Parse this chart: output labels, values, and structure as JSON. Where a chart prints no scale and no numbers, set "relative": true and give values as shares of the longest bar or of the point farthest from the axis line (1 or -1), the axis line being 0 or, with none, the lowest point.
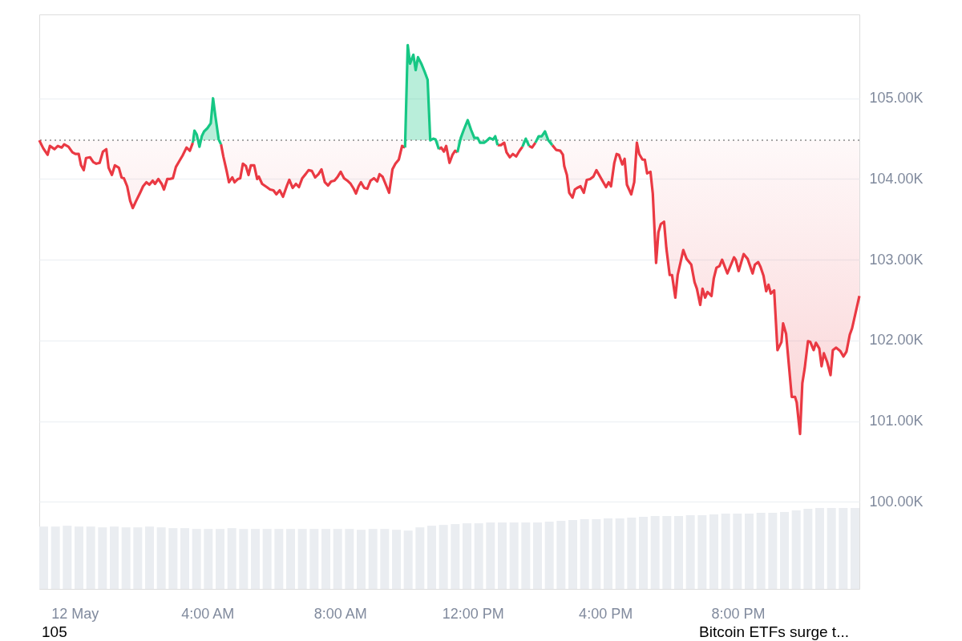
{
  "chart_data": [
    {
      "type": "line",
      "xlim": [
        -1.07,
        23.66
      ],
      "ylim": [
        98.92,
        106.04
      ],
      "grid": "y",
      "marker": "none",
      "line_style": "solid",
      "xticks": [
        {
          "value": 0,
          "label": "12 May"
        },
        {
          "value": 4,
          "label": "4:00 AM"
        },
        {
          "value": 8,
          "label": "8:00 AM"
        },
        {
          "value": 12,
          "label": "12:00 PM"
        },
        {
          "value": 16,
          "label": "4:00 PM"
        },
        {
          "value": 20,
          "label": "8:00 PM"
        }
      ],
      "yticks": [
        {
          "value": 100,
          "label": "100.00K"
        },
        {
          "value": 101,
          "label": "101.00K"
        },
        {
          "value": 102,
          "label": "102.00K"
        },
        {
          "value": 103,
          "label": "103.00K"
        },
        {
          "value": 104,
          "label": "104.00K"
        },
        {
          "value": 105,
          "label": "105.00K"
        }
      ],
      "ref_lines": [
        {
          "axis": "y",
          "value": 104.48,
          "label": null,
          "color": "#8c8c8c",
          "line_style": "dotted"
        }
      ],
      "annotations": [
        "105",
        "Bitcoin ETFs surge t..."
      ],
      "x": [
        -1.07,
        -0.95,
        -0.82,
        -0.75,
        -0.61,
        -0.51,
        -0.39,
        -0.32,
        -0.19,
        -0.07,
        0.02,
        0.12,
        0.19,
        0.27,
        0.34,
        0.46,
        0.56,
        0.65,
        0.75,
        0.85,
        0.95,
        1.02,
        1.12,
        1.21,
        1.33,
        1.41,
        1.48,
        1.58,
        1.67,
        1.75,
        1.84,
        1.96,
        2.06,
        2.16,
        2.25,
        2.35,
        2.42,
        2.52,
        2.62,
        2.69,
        2.79,
        2.86,
        2.96,
        3.05,
        3.15,
        3.25,
        3.37,
        3.47,
        3.56,
        3.61,
        3.68,
        3.76,
        3.83,
        3.9,
        4.0,
        4.1,
        4.17,
        4.24,
        4.34,
        4.41,
        4.48,
        4.58,
        4.65,
        4.75,
        4.82,
        4.92,
        4.99,
        5.07,
        5.16,
        5.24,
        5.31,
        5.41,
        5.5,
        5.55,
        5.65,
        5.79,
        5.89,
        5.99,
        6.08,
        6.18,
        6.28,
        6.4,
        6.47,
        6.57,
        6.67,
        6.76,
        6.86,
        6.96,
        7.05,
        7.15,
        7.25,
        7.35,
        7.44,
        7.54,
        7.64,
        7.73,
        7.83,
        7.93,
        8.02,
        8.12,
        8.22,
        8.32,
        8.41,
        8.48,
        8.56,
        8.63,
        8.73,
        8.82,
        8.92,
        9.02,
        9.12,
        9.19,
        9.28,
        9.41,
        9.48,
        9.58,
        9.67,
        9.77,
        9.87,
        9.96,
        10.04,
        10.11,
        10.21,
        10.28,
        10.35,
        10.45,
        10.55,
        10.64,
        10.72,
        10.81,
        10.88,
        10.98,
        11.05,
        11.13,
        11.2,
        11.3,
        11.39,
        11.47,
        11.54,
        11.64,
        11.73,
        11.85,
        11.95,
        12.05,
        12.15,
        12.22,
        12.34,
        12.41,
        12.51,
        12.61,
        12.68,
        12.75,
        12.85,
        12.95,
        13.02,
        13.12,
        13.21,
        13.31,
        13.41,
        13.5,
        13.6,
        13.7,
        13.79,
        13.89,
        13.99,
        14.08,
        14.18,
        14.28,
        14.4,
        14.52,
        14.64,
        14.72,
        14.76,
        14.84,
        14.91,
        15.01,
        15.08,
        15.15,
        15.25,
        15.35,
        15.44,
        15.54,
        15.64,
        15.73,
        16.02,
        16.1,
        16.17,
        16.27,
        16.34,
        16.41,
        16.51,
        16.58,
        16.65,
        16.78,
        16.87,
        16.95,
        17.02,
        17.12,
        17.19,
        17.26,
        17.36,
        17.43,
        17.53,
        17.6,
        17.67,
        17.77,
        17.84,
        17.94,
        18.01,
        18.11,
        18.18,
        18.35,
        18.45,
        18.59,
        18.69,
        18.76,
        18.86,
        18.93,
        19.01,
        19.08,
        19.2,
        19.27,
        19.35,
        19.44,
        19.52,
        19.68,
        19.88,
        19.93,
        20.02,
        20.17,
        20.29,
        20.44,
        20.51,
        20.61,
        20.68,
        20.77,
        20.85,
        20.92,
        20.99,
        21.09,
        21.19,
        21.31,
        21.36,
        21.45,
        21.62,
        21.72,
        21.77,
        21.87,
        21.94,
        22.01,
        22.11,
        22.18,
        22.28,
        22.35,
        22.45,
        22.52,
        22.59,
        22.69,
        22.79,
        22.86,
        22.96,
        23.08,
        23.18,
        23.27,
        23.37,
        23.44,
        23.66
      ],
      "series": [
        {
          "color": "#ea3943",
          "values": [
            104.48,
            104.38,
            104.3,
            104.41,
            104.37,
            104.41,
            104.39,
            104.43,
            104.4,
            104.33,
            104.31,
            104.31,
            104.17,
            104.11,
            104.26,
            104.27,
            104.21,
            104.19,
            104.2,
            104.34,
            104.37,
            104.14,
            104.05,
            104.17,
            104.14,
            104.02,
            104.01,
            103.91,
            103.73,
            103.64,
            103.72,
            103.82,
            103.91,
            103.96,
            103.93,
            103.98,
            103.94,
            104.0,
            103.94,
            103.87,
            104.0,
            104.0,
            104.01,
            104.15,
            104.22,
            104.29,
            104.39,
            104.35,
            104.45,
            null,
            null,
            null,
            null,
            null,
            null,
            null,
            null,
            null,
            null,
            104.43,
            104.28,
            104.1,
            103.96,
            104.02,
            103.96,
            104.0,
            104.01,
            104.19,
            104.16,
            104.05,
            104.17,
            104.17,
            104.0,
            104.03,
            103.94,
            103.9,
            103.87,
            103.86,
            103.81,
            103.86,
            103.78,
            103.92,
            103.99,
            103.89,
            103.94,
            103.9,
            104.01,
            104.06,
            104.11,
            104.1,
            104.02,
            104.06,
            104.12,
            103.96,
            103.92,
            103.97,
            103.98,
            104.03,
            104.09,
            104.01,
            103.98,
            103.94,
            103.88,
            103.82,
            103.91,
            103.96,
            103.89,
            103.88,
            103.98,
            104.01,
            103.97,
            104.06,
            104.03,
            103.9,
            103.83,
            104.12,
            104.19,
            104.24,
            104.41,
            104.39,
            null,
            null,
            null,
            null,
            null,
            null,
            null,
            null,
            null,
            null,
            null,
            104.37,
            104.39,
            104.34,
            104.41,
            104.2,
            104.3,
            104.35,
            104.33,
            null,
            null,
            null,
            null,
            null,
            null,
            null,
            null,
            null,
            null,
            null,
            null,
            104.42,
            104.42,
            104.45,
            104.33,
            104.27,
            104.31,
            104.28,
            104.35,
            104.4,
            null,
            104.41,
            104.39,
            104.45,
            null,
            null,
            null,
            null,
            104.42,
            104.36,
            104.35,
            104.3,
            104.16,
            104.05,
            103.83,
            103.77,
            103.87,
            103.89,
            103.91,
            103.83,
            103.99,
            104.0,
            104.03,
            104.11,
            103.9,
            103.96,
            103.91,
            104.2,
            104.31,
            104.3,
            104.18,
            104.25,
            103.93,
            103.81,
            103.96,
            104.45,
            104.31,
            104.24,
            104.24,
            104.07,
            104.09,
            103.82,
            102.96,
            103.34,
            103.44,
            103.47,
            103.14,
            102.81,
            102.81,
            102.53,
            102.81,
            103.12,
            103.01,
            102.94,
            102.72,
            102.64,
            102.44,
            102.64,
            102.53,
            102.6,
            102.55,
            102.77,
            102.9,
            102.92,
            103.0,
            102.83,
            103.03,
            103.0,
            102.86,
            103.07,
            103.01,
            102.83,
            102.94,
            102.97,
            102.91,
            102.8,
            102.61,
            102.69,
            102.58,
            102.62,
            101.88,
            101.98,
            102.21,
            102.08,
            101.3,
            101.3,
            101.23,
            100.84,
            101.47,
            101.65,
            101.99,
            101.98,
            101.88,
            101.97,
            101.9,
            101.68,
            101.84,
            101.73,
            101.57,
            101.88,
            101.91,
            101.87,
            101.8,
            101.86,
            102.07,
            102.15,
            102.55
          ]
        },
        {
          "color": "#16c784",
          "x": [
            3.56,
            3.61,
            3.68,
            3.76,
            3.83,
            3.9,
            4.0,
            4.1,
            4.17,
            4.24,
            4.34,
            4.41,
            4.48,
            9.96,
            10.04,
            10.11,
            10.21,
            10.28,
            10.35,
            10.45,
            10.55,
            10.64,
            10.72,
            10.81,
            10.88,
            10.98,
            11.05,
            11.54,
            11.64,
            11.73,
            11.85,
            11.95,
            12.05,
            12.15,
            12.22,
            12.34,
            12.41,
            12.51,
            12.61,
            12.68,
            12.75,
            12.85,
            13.5,
            13.6,
            13.7,
            13.79,
            13.89,
            13.99,
            14.08,
            14.18,
            14.28,
            14.4
          ],
          "values": [
            104.45,
            104.6,
            104.55,
            104.4,
            104.53,
            104.59,
            104.63,
            104.69,
            105.0,
            104.78,
            104.49,
            104.43,
            null,
            104.39,
            105.66,
            105.43,
            105.54,
            105.35,
            105.51,
            105.43,
            105.33,
            105.23,
            104.48,
            104.5,
            104.49,
            104.37,
            null,
            104.33,
            104.51,
            104.61,
            104.73,
            104.61,
            104.51,
            104.51,
            104.45,
            104.45,
            104.47,
            104.51,
            104.49,
            104.53,
            104.42,
            null,
            104.4,
            104.5,
            104.41,
            null,
            104.45,
            104.53,
            104.53,
            104.59,
            104.48,
            104.42
          ]
        }
      ]
    },
    {
      "type": "bar",
      "relative": true,
      "color": "#eaedf1",
      "categories": [
        null,
        null,
        null,
        null,
        null,
        null,
        null,
        null,
        null,
        null,
        null,
        null,
        null,
        null,
        null,
        null,
        null,
        null,
        null,
        null,
        null,
        null,
        null,
        null,
        null,
        null,
        null,
        null,
        null,
        null,
        null,
        null,
        null,
        null,
        null,
        null,
        null,
        null,
        null,
        null,
        null,
        null,
        null,
        null,
        null,
        null,
        null,
        null,
        null,
        null,
        null,
        null,
        null,
        null,
        null,
        null,
        null,
        null,
        null,
        null,
        null,
        null,
        null,
        null,
        null,
        null,
        null,
        null,
        null,
        null
      ],
      "values": [
        0.77,
        0.77,
        0.78,
        0.77,
        0.77,
        0.76,
        0.77,
        0.76,
        0.76,
        0.77,
        0.76,
        0.75,
        0.75,
        0.74,
        0.74,
        0.74,
        0.75,
        0.74,
        0.74,
        0.74,
        0.74,
        0.74,
        0.74,
        0.74,
        0.74,
        0.74,
        0.74,
        0.73,
        0.74,
        0.74,
        0.73,
        0.72,
        0.76,
        0.78,
        0.79,
        0.8,
        0.81,
        0.81,
        0.82,
        0.82,
        0.82,
        0.82,
        0.82,
        0.83,
        0.84,
        0.85,
        0.86,
        0.86,
        0.87,
        0.87,
        0.88,
        0.89,
        0.9,
        0.9,
        0.9,
        0.91,
        0.91,
        0.92,
        0.93,
        0.93,
        0.93,
        0.94,
        0.94,
        0.95,
        0.97,
        0.99,
        1.0,
        1.0,
        1.0,
        1.0
      ]
    }
  ]
}
